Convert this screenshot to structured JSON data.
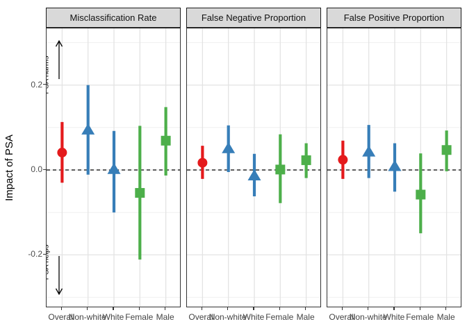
{
  "figure": {
    "background": "#ffffff"
  },
  "chart_data": {
    "type": "scatter",
    "geom": "pointrange-with-ci",
    "title": "",
    "xlabel": "",
    "ylabel": "Impact of PSA",
    "ylim": [
      -0.325,
      0.334
    ],
    "yticks": [
      0.2,
      0.0,
      -0.2
    ],
    "ytick_labels": [
      "0.2",
      "0.0",
      "-0.2"
    ],
    "minor_gridlines": [
      0.3,
      0.1,
      -0.1,
      -0.3
    ],
    "grid": "on",
    "legend_position": "none",
    "zero_line": {
      "y": 0.0,
      "style": "dashed",
      "color": "#000000"
    },
    "categories": [
      "Overall",
      "Non-white",
      "White",
      "Female",
      "Male"
    ],
    "category_styles": {
      "Overall": {
        "marker": "circle",
        "color": "#E41A1C"
      },
      "Non-white": {
        "marker": "triangle",
        "color": "#377EB8"
      },
      "White": {
        "marker": "triangle",
        "color": "#377EB8"
      },
      "Female": {
        "marker": "square",
        "color": "#4DAF4A"
      },
      "Male": {
        "marker": "square",
        "color": "#4DAF4A"
      }
    },
    "annotations": {
      "top": {
        "text": "PSA harms",
        "arrow": "up"
      },
      "bottom": {
        "text": "PSA helps",
        "arrow": "down"
      }
    },
    "facets": [
      {
        "title": "Misclassification Rate",
        "has_annotations": true,
        "points": [
          {
            "category": "Overall",
            "estimate": 0.041,
            "lo": -0.03,
            "hi": 0.113
          },
          {
            "category": "Non-white",
            "estimate": 0.095,
            "lo": -0.011,
            "hi": 0.2
          },
          {
            "category": "White",
            "estimate": 0.002,
            "lo": -0.1,
            "hi": 0.092
          },
          {
            "category": "Female",
            "estimate": -0.054,
            "lo": -0.211,
            "hi": 0.104
          },
          {
            "category": "Male",
            "estimate": 0.069,
            "lo": -0.013,
            "hi": 0.148
          }
        ]
      },
      {
        "title": "False Negative Proportion",
        "has_annotations": false,
        "points": [
          {
            "category": "Overall",
            "estimate": 0.017,
            "lo": -0.021,
            "hi": 0.057
          },
          {
            "category": "Non-white",
            "estimate": 0.051,
            "lo": -0.005,
            "hi": 0.105
          },
          {
            "category": "White",
            "estimate": -0.013,
            "lo": -0.062,
            "hi": 0.038
          },
          {
            "category": "Female",
            "estimate": 0.001,
            "lo": -0.078,
            "hi": 0.084
          },
          {
            "category": "Male",
            "estimate": 0.023,
            "lo": -0.019,
            "hi": 0.063
          }
        ]
      },
      {
        "title": "False Positive Proportion",
        "has_annotations": false,
        "points": [
          {
            "category": "Overall",
            "estimate": 0.024,
            "lo": -0.021,
            "hi": 0.069
          },
          {
            "category": "Non-white",
            "estimate": 0.043,
            "lo": -0.019,
            "hi": 0.106
          },
          {
            "category": "White",
            "estimate": 0.009,
            "lo": -0.051,
            "hi": 0.063
          },
          {
            "category": "Female",
            "estimate": -0.058,
            "lo": -0.149,
            "hi": 0.039
          },
          {
            "category": "Male",
            "estimate": 0.047,
            "lo": -0.003,
            "hi": 0.093
          }
        ]
      }
    ],
    "colors": {
      "overall": "#E41A1C",
      "race": "#377EB8",
      "sex": "#4DAF4A",
      "strip_fill": "#D9D9D9",
      "panel_border": "#333333",
      "grid_major": "#E3E3E3",
      "grid_minor": "#EFEFEF"
    }
  }
}
